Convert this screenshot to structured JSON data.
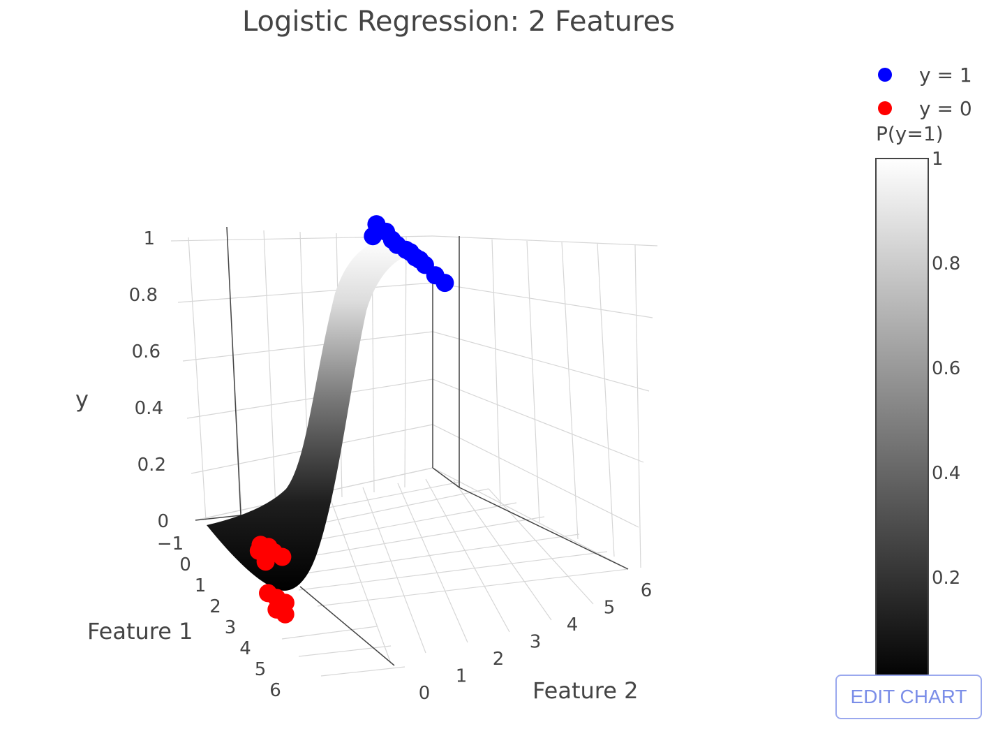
{
  "chart_data": {
    "type": "scatter",
    "title": "Logistic Regression: 2 Features",
    "xlabel": "Feature 1",
    "ylabel": "Feature 2",
    "zlabel": "y",
    "x_ticks": [
      "−1",
      "0",
      "1",
      "2",
      "3",
      "4",
      "5",
      "6"
    ],
    "y_ticks": [
      "0",
      "1",
      "2",
      "3",
      "4",
      "5",
      "6"
    ],
    "z_ticks": [
      "0",
      "0.2",
      "0.4",
      "0.6",
      "0.8",
      "1"
    ],
    "xlim": [
      -1,
      6
    ],
    "ylim": [
      0,
      6
    ],
    "zlim": [
      0,
      1
    ],
    "grid": true,
    "legend": "top-right",
    "series": [
      {
        "name": "y = 1",
        "color": "#0000ff",
        "points": [
          [
            -0.8,
            4.4,
            1
          ],
          [
            -0.5,
            4.6,
            1
          ],
          [
            -0.4,
            4.2,
            1
          ],
          [
            -0.2,
            4.7,
            1
          ],
          [
            0.0,
            4.8,
            1
          ],
          [
            0.2,
            5.0,
            1
          ],
          [
            0.3,
            5.1,
            1
          ],
          [
            0.5,
            5.2,
            1
          ],
          [
            0.6,
            5.3,
            1
          ],
          [
            0.8,
            5.4,
            1
          ],
          [
            1.2,
            5.6,
            1
          ],
          [
            1.5,
            5.8,
            1
          ]
        ]
      },
      {
        "name": "y = 0",
        "color": "#ff0000",
        "points": [
          [
            0.1,
            0.3,
            0
          ],
          [
            0.2,
            0.5,
            0
          ],
          [
            0.3,
            0.2,
            0
          ],
          [
            0.4,
            0.6,
            0
          ],
          [
            0.5,
            0.4,
            0
          ],
          [
            0.6,
            0.8,
            0
          ],
          [
            0.7,
            0.3,
            0
          ],
          [
            1.8,
            0.1,
            0
          ],
          [
            2.0,
            0.3,
            0
          ],
          [
            2.2,
            0.5,
            0
          ],
          [
            2.4,
            0.2,
            0
          ],
          [
            2.6,
            0.4,
            0
          ]
        ]
      }
    ],
    "surface": {
      "name": "P(y=1)",
      "colorscale": [
        [
          "0",
          "#000000"
        ],
        [
          "1",
          "#ffffff"
        ]
      ],
      "colorbar_ticks": [
        "0.2",
        "0.4",
        "0.6",
        "0.8",
        "1"
      ]
    }
  },
  "toolbar": {
    "edit_label": "EDIT CHART"
  }
}
